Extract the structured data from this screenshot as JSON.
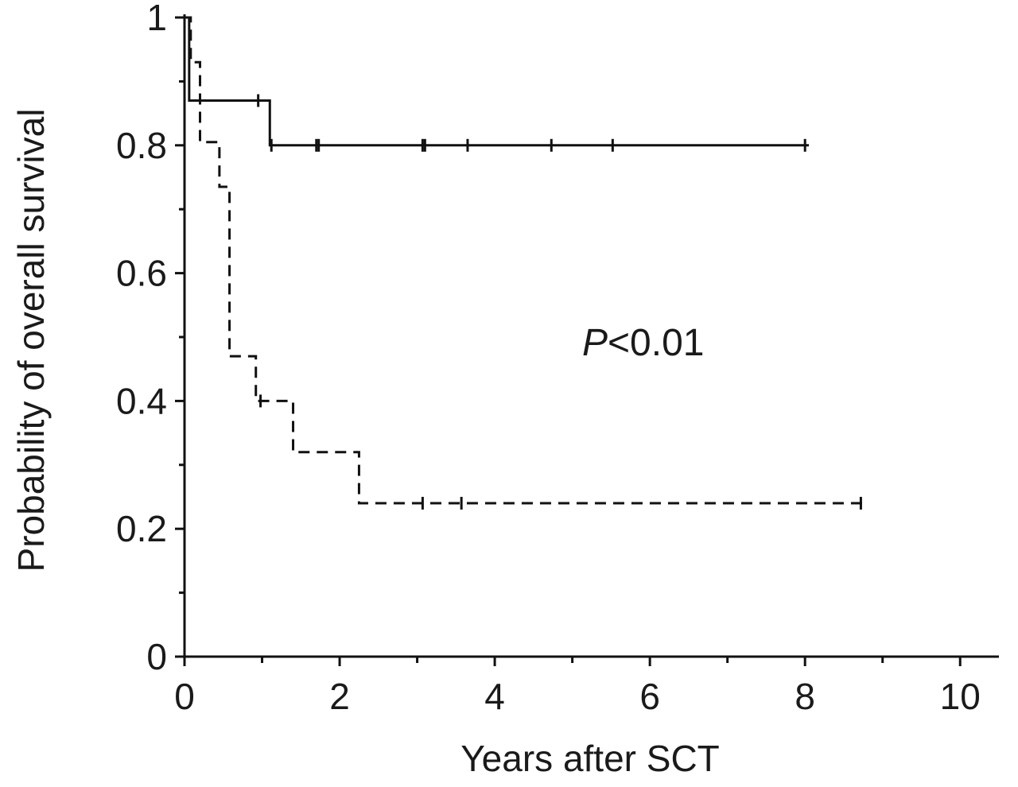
{
  "chart_data": {
    "type": "line",
    "subtype": "kaplan-meier step",
    "title": "",
    "xlabel": "Years after SCT",
    "ylabel": "Probability of overall survival",
    "xlim": [
      0,
      10.5
    ],
    "ylim": [
      0,
      1
    ],
    "xticks": [
      0,
      2,
      4,
      6,
      8,
      10
    ],
    "xtick_labels": [
      "0",
      "2",
      "4",
      "6",
      "8",
      "10"
    ],
    "x_minor_step": 1,
    "yticks": [
      0,
      0.2,
      0.4,
      0.6,
      0.8,
      1
    ],
    "ytick_labels": [
      "0",
      "0.2",
      "0.4",
      "0.6",
      "0.8",
      "1"
    ],
    "y_minor_step": 0.1,
    "grid": false,
    "legend": "none",
    "colors": {
      "line": "#111111",
      "axis": "#111111",
      "text": "#1a1a1a"
    },
    "series": [
      {
        "style": "solid",
        "steps": [
          [
            0,
            1.0
          ],
          [
            0.06,
            0.87
          ],
          [
            1.1,
            0.8
          ]
        ],
        "end_x": 8.05,
        "censored": [
          [
            0.95,
            0.87
          ],
          [
            1.12,
            0.8
          ],
          [
            1.7,
            0.8
          ],
          [
            1.73,
            0.8
          ],
          [
            3.07,
            0.8
          ],
          [
            3.1,
            0.8
          ],
          [
            3.65,
            0.8
          ],
          [
            4.73,
            0.8
          ],
          [
            5.52,
            0.8
          ],
          [
            8.0,
            0.8
          ]
        ]
      },
      {
        "style": "dashed",
        "steps": [
          [
            0,
            1.0
          ],
          [
            0.08,
            0.93
          ],
          [
            0.2,
            0.805
          ],
          [
            0.45,
            0.735
          ],
          [
            0.58,
            0.47
          ],
          [
            0.92,
            0.4
          ],
          [
            1.4,
            0.32
          ],
          [
            2.25,
            0.24
          ]
        ],
        "end_x": 8.8,
        "censored": [
          [
            0.98,
            0.4
          ],
          [
            3.07,
            0.24
          ],
          [
            3.57,
            0.24
          ],
          [
            8.72,
            0.24
          ]
        ]
      }
    ],
    "annotations": [
      {
        "italic": "P",
        "text": "<0.01"
      }
    ]
  }
}
